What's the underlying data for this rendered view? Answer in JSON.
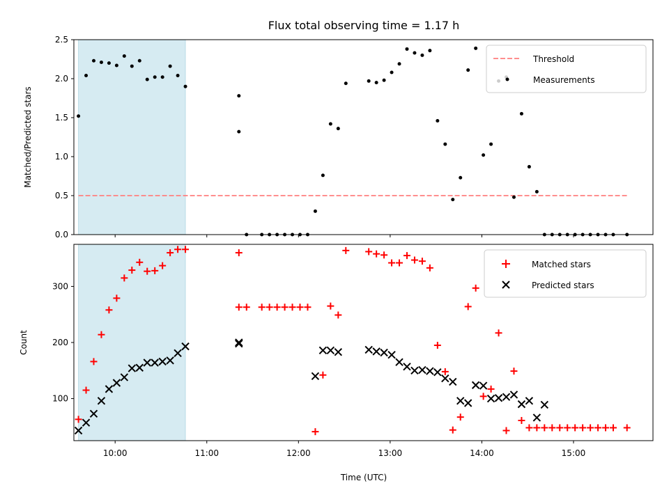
{
  "chart_data": [
    {
      "type": "scatter",
      "title": "Flux total observing time = 1.17 h",
      "ylabel": "Matched/Predicted stars",
      "xlabel": "",
      "xlim": [
        "09:33",
        "15:52"
      ],
      "ylim": [
        0,
        2.5
      ],
      "yticks": [
        "0.0",
        "0.5",
        "1.0",
        "1.5",
        "2.0",
        "2.5"
      ],
      "xticks_shown": false,
      "grid": false,
      "legend": "top-right",
      "shaded_interval": [
        "09:36",
        "10:46"
      ],
      "series": [
        {
          "name": "Threshold",
          "style": "dashed-line",
          "color": "#ff7f7f",
          "x": [
            "09:36",
            "15:35"
          ],
          "y": [
            0.5,
            0.5
          ]
        },
        {
          "name": "Measurements",
          "style": "dot",
          "color": "#000000",
          "x": [
            "09:36",
            "09:41",
            "09:46",
            "09:51",
            "09:56",
            "10:01",
            "10:06",
            "10:11",
            "10:16",
            "10:21",
            "10:26",
            "10:31",
            "10:36",
            "10:41",
            "10:46",
            "11:21",
            "11:21",
            "11:26",
            "11:36",
            "11:41",
            "11:46",
            "11:51",
            "11:56",
            "12:01",
            "12:06",
            "12:11",
            "12:16",
            "12:21",
            "12:26",
            "12:31",
            "12:46",
            "12:51",
            "12:56",
            "13:01",
            "13:06",
            "13:11",
            "13:16",
            "13:21",
            "13:26",
            "13:31",
            "13:36",
            "13:41",
            "13:46",
            "13:51",
            "13:56",
            "14:01",
            "14:06",
            "14:11",
            "14:16",
            "14:21",
            "14:26",
            "14:31",
            "14:36",
            "14:41",
            "14:46",
            "14:51",
            "14:56",
            "15:01",
            "15:06",
            "15:11",
            "15:16",
            "15:21",
            "15:26",
            "15:35"
          ],
          "y": [
            1.52,
            2.04,
            2.23,
            2.21,
            2.2,
            2.17,
            2.29,
            2.16,
            2.23,
            1.99,
            2.02,
            2.02,
            2.16,
            2.04,
            1.9,
            1.78,
            1.32,
            0.0,
            0.0,
            0.0,
            0.0,
            0.0,
            0.0,
            0.0,
            0.0,
            0.3,
            0.76,
            1.42,
            1.36,
            1.94,
            1.97,
            1.95,
            1.98,
            2.08,
            2.19,
            2.38,
            2.33,
            2.3,
            2.36,
            1.46,
            1.16,
            0.45,
            0.73,
            2.11,
            2.39,
            1.02,
            1.16,
            1.97,
            2.02,
            0.48,
            1.55,
            0.87,
            0.55,
            0.0,
            0.0,
            0.0,
            0.0,
            0.0,
            0.0,
            0.0,
            0.0,
            0.0,
            0.0,
            0.0
          ]
        }
      ]
    },
    {
      "type": "scatter",
      "title": "",
      "ylabel": "Count",
      "xlabel": "Time (UTC)",
      "xlim": [
        "09:33",
        "15:52"
      ],
      "ylim": [
        25,
        375
      ],
      "yticks": [
        "100",
        "200",
        "300"
      ],
      "xticks": [
        "10:00",
        "11:00",
        "12:00",
        "13:00",
        "14:00",
        "15:00"
      ],
      "grid": false,
      "legend": "top-right",
      "shaded_interval": [
        "09:36",
        "10:46"
      ],
      "series": [
        {
          "name": "Matched stars",
          "marker": "+",
          "color": "#ff0000",
          "x": [
            "09:36",
            "09:41",
            "09:46",
            "09:51",
            "09:56",
            "10:01",
            "10:06",
            "10:11",
            "10:16",
            "10:21",
            "10:26",
            "10:31",
            "10:36",
            "10:41",
            "10:46",
            "11:21",
            "11:21",
            "11:26",
            "11:36",
            "11:41",
            "11:46",
            "11:51",
            "11:56",
            "12:01",
            "12:06",
            "12:11",
            "12:16",
            "12:21",
            "12:26",
            "12:31",
            "12:46",
            "12:51",
            "12:56",
            "13:01",
            "13:06",
            "13:11",
            "13:16",
            "13:21",
            "13:26",
            "13:31",
            "13:36",
            "13:41",
            "13:46",
            "13:51",
            "13:56",
            "14:01",
            "14:06",
            "14:11",
            "14:16",
            "14:21",
            "14:26",
            "14:31",
            "14:36",
            "14:41",
            "14:46",
            "14:51",
            "14:56",
            "15:01",
            "15:06",
            "15:11",
            "15:16",
            "15:21",
            "15:26",
            "15:35"
          ],
          "y": [
            63,
            115,
            166,
            214,
            258,
            279,
            315,
            329,
            343,
            327,
            328,
            337,
            360,
            366,
            366,
            360,
            263,
            263,
            263,
            263,
            263,
            263,
            263,
            263,
            263,
            41,
            142,
            265,
            249,
            364,
            362,
            358,
            356,
            342,
            342,
            355,
            347,
            345,
            333,
            195,
            148,
            44,
            67,
            264,
            297,
            104,
            117,
            217,
            43,
            149,
            61,
            48,
            48,
            48,
            48,
            48,
            48,
            48,
            48,
            48,
            48,
            48,
            48,
            48
          ]
        },
        {
          "name": "Predicted stars",
          "marker": "x",
          "color": "#000000",
          "x": [
            "09:36",
            "09:41",
            "09:46",
            "09:51",
            "09:56",
            "10:01",
            "10:06",
            "10:11",
            "10:16",
            "10:21",
            "10:26",
            "10:31",
            "10:36",
            "10:41",
            "10:46",
            "11:21",
            "11:21",
            "12:11",
            "12:16",
            "12:21",
            "12:26",
            "12:46",
            "12:51",
            "12:56",
            "13:01",
            "13:06",
            "13:11",
            "13:16",
            "13:21",
            "13:26",
            "13:31",
            "13:36",
            "13:41",
            "13:46",
            "13:51",
            "13:56",
            "14:01",
            "14:06",
            "14:11",
            "14:16",
            "14:21",
            "14:26",
            "14:31",
            "14:36",
            "14:41"
          ],
          "y": [
            43,
            57,
            73,
            96,
            117,
            128,
            138,
            154,
            155,
            164,
            164,
            166,
            168,
            181,
            193,
            200,
            198,
            140,
            186,
            186,
            183,
            187,
            184,
            182,
            178,
            165,
            157,
            150,
            151,
            149,
            147,
            136,
            130,
            96,
            92,
            124,
            123,
            100,
            101,
            103,
            107,
            90,
            96,
            66,
            89
          ]
        }
      ]
    }
  ]
}
